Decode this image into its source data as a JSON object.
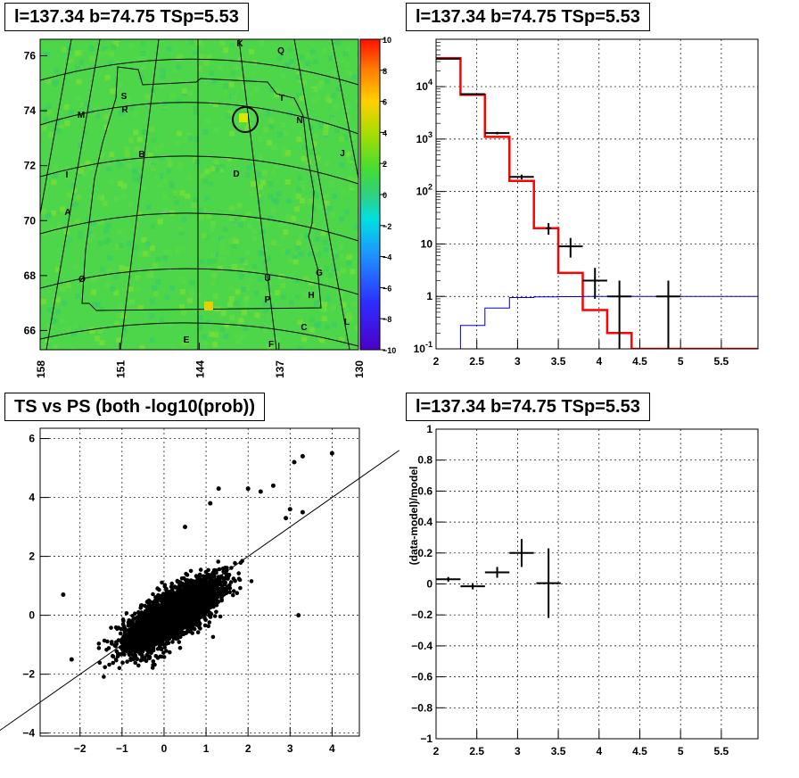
{
  "panels": {
    "skymap": {
      "title": "l=137.34 b=74.75 TSp=5.53"
    },
    "spectrum": {
      "title": "l=137.34 b=74.75 TSp=5.53"
    },
    "scatter": {
      "title": "TS vs PS (both -log10(prob))"
    },
    "residual": {
      "title": "l=137.34 b=74.75 TSp=5.53"
    }
  },
  "chart_data": [
    {
      "type": "heatmap",
      "title": "l=137.34 b=74.75 TSp=5.53",
      "x_tick_labels": [
        "158",
        "151",
        "144",
        "137",
        "130"
      ],
      "y_tick_labels": [
        "66",
        "68",
        "70",
        "72",
        "74",
        "76"
      ],
      "xlim": [
        158,
        130
      ],
      "ylim": [
        65.3,
        76.6
      ],
      "colorbar": {
        "range": [
          -10,
          10
        ],
        "tick_labels": [
          "10",
          "8",
          "6",
          "4",
          "2",
          "0",
          "−2",
          "−4",
          "−6",
          "−8",
          "−10"
        ]
      },
      "region_labels": [
        "K",
        "Q",
        "S",
        "R",
        "T",
        "M",
        "N",
        "B",
        "J",
        "I",
        "D",
        "A",
        "G",
        "U",
        "Ø",
        "H",
        "P",
        "C",
        "L",
        "E",
        "F"
      ],
      "source_marker": {
        "l": 137.34,
        "b": 74.75
      },
      "colors": {
        "background": "#4fd84a",
        "marker": "#000000"
      }
    },
    {
      "type": "line",
      "title": "l=137.34 b=74.75 TSp=5.53",
      "x_tick_labels": [
        "2",
        "2.5",
        "3",
        "3.5",
        "4",
        "4.5",
        "5",
        "5.5"
      ],
      "y_tick_labels": [
        "10^-1",
        "1",
        "10",
        "10^2",
        "10^3",
        "10^4"
      ],
      "xlim": [
        2,
        5.95
      ],
      "ylim": [
        0.1,
        80000
      ],
      "log_y": true,
      "grid": true,
      "series": [
        {
          "style": "histogram",
          "color": "#ff0000",
          "bin_edges": [
            2.0,
            2.3,
            2.6,
            2.9,
            3.2,
            3.5,
            3.8,
            4.1,
            4.4,
            5.95
          ],
          "values": [
            35000,
            7000,
            1100,
            160,
            20,
            2.8,
            0.55,
            0.2,
            0.1
          ]
        },
        {
          "style": "histogram",
          "color": "#0000cc",
          "bin_edges": [
            2.0,
            2.3,
            2.6,
            2.9,
            3.2,
            3.5,
            3.8,
            5.95
          ],
          "values": [
            0.09,
            0.28,
            0.6,
            0.95,
            0.98,
            0.99,
            1.0
          ]
        },
        {
          "style": "errorbar",
          "color": "#000000",
          "x": [
            2.15,
            2.45,
            2.75,
            3.05,
            3.38,
            3.65,
            3.95,
            4.25,
            4.85
          ],
          "xerr": [
            0.15,
            0.15,
            0.15,
            0.15,
            0.03,
            0.15,
            0.15,
            0.15,
            0.15
          ],
          "y": [
            34000,
            7200,
            1300,
            190,
            20,
            9,
            2,
            1,
            1
          ],
          "ylo": [
            33000,
            6900,
            1230,
            170,
            15,
            5.5,
            0.9,
            0.1,
            0.1
          ],
          "yhi": [
            35000,
            7500,
            1370,
            210,
            25,
            13,
            3.5,
            2,
            2
          ]
        }
      ]
    },
    {
      "type": "scatter",
      "title": "TS vs PS (both -log10(prob))",
      "x_tick_labels": [
        "−2",
        "−1",
        "0",
        "1",
        "2",
        "3",
        "4"
      ],
      "y_tick_labels": [
        "−4",
        "−2",
        "0",
        "2",
        "4",
        "6"
      ],
      "xlim": [
        -2.95,
        4.65
      ],
      "ylim": [
        -4.1,
        6.35
      ],
      "grid": true,
      "reference_line": {
        "slope": 1,
        "intercept": 0
      },
      "points": [
        [
          4.0,
          5.5
        ],
        [
          3.3,
          5.4
        ],
        [
          3.1,
          5.2
        ],
        [
          2.6,
          4.4
        ],
        [
          2.0,
          4.3
        ],
        [
          2.3,
          4.2
        ],
        [
          1.3,
          4.3
        ],
        [
          3.0,
          3.6
        ],
        [
          3.3,
          3.5
        ],
        [
          3.2,
          0.0
        ],
        [
          -2.4,
          0.7
        ],
        [
          -2.2,
          -1.5
        ],
        [
          2.9,
          3.3
        ],
        [
          1.1,
          3.8
        ],
        [
          0.5,
          3.0
        ]
      ],
      "cloud": {
        "count": 3200,
        "center": [
          0.2,
          0.0
        ],
        "spread": [
          0.55,
          0.6
        ],
        "correlation": 0.75
      },
      "colors": {
        "points": "#000000"
      }
    },
    {
      "type": "line",
      "title": "l=137.34 b=74.75 TSp=5.53",
      "ylabel": "(data-model)/model",
      "x_tick_labels": [
        "2",
        "2.5",
        "3",
        "3.5",
        "4",
        "4.5",
        "5",
        "5.5"
      ],
      "y_tick_labels": [
        "−1",
        "−0.8",
        "−0.6",
        "−0.4",
        "−0.2",
        "0",
        "0.2",
        "0.4",
        "0.6",
        "0.8",
        "1"
      ],
      "xlim": [
        2,
        5.95
      ],
      "ylim": [
        -1,
        1
      ],
      "grid": true,
      "series": [
        {
          "style": "errorbar",
          "color": "#000000",
          "x": [
            2.15,
            2.45,
            2.75,
            3.05,
            3.38
          ],
          "xerr": [
            0.15,
            0.15,
            0.15,
            0.15,
            0.15
          ],
          "y": [
            0.03,
            -0.015,
            0.075,
            0.2,
            0.005
          ],
          "ylo": [
            0.015,
            -0.035,
            0.04,
            0.11,
            -0.22
          ],
          "yhi": [
            0.045,
            0.005,
            0.11,
            0.29,
            0.23
          ]
        }
      ]
    }
  ]
}
